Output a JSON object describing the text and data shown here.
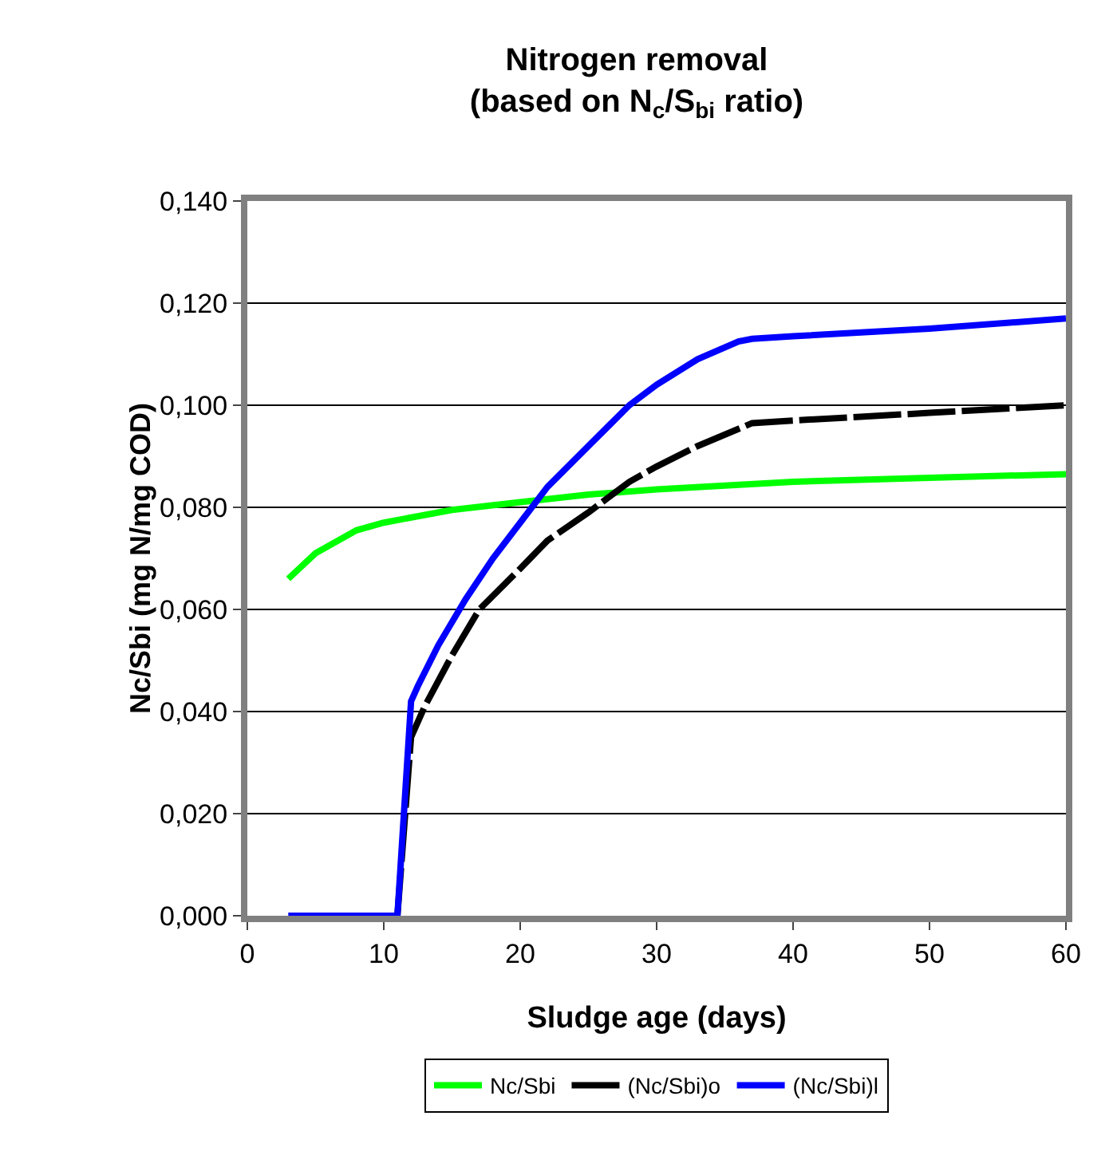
{
  "chart_data": {
    "type": "line",
    "title": "Nitrogen removal\n(based on N$_{c}$/S$_{bi}$ ratio)",
    "xlabel": "Sludge age (days)",
    "ylabel": "Nc/Sbi (mg N/mg COD)",
    "xlim": [
      0,
      60
    ],
    "xticks": [
      0,
      10,
      20,
      30,
      40,
      50,
      60
    ],
    "ylim": [
      0,
      0.14
    ],
    "yticks": [
      {
        "value": 0,
        "label": "0,000"
      },
      {
        "value": 0.02,
        "label": "0,020"
      },
      {
        "value": 0.04,
        "label": "0,040"
      },
      {
        "value": 0.06,
        "label": "0,060"
      },
      {
        "value": 0.08,
        "label": "0,080"
      },
      {
        "value": 0.1,
        "label": "0,100"
      },
      {
        "value": 0.12,
        "label": "0,120"
      },
      {
        "value": 0.14,
        "label": "0,140"
      }
    ],
    "grid": "y",
    "legend": "bottom",
    "marker": "none",
    "series": [
      {
        "name": "Nc/Sbi",
        "color": "#00ff00",
        "line_style": "solid",
        "x": [
          3,
          5,
          8,
          10,
          15,
          20,
          25,
          30,
          40,
          50,
          60
        ],
        "values": [
          0.066,
          0.071,
          0.0755,
          0.077,
          0.0795,
          0.081,
          0.0825,
          0.0835,
          0.085,
          0.0858,
          0.0865
        ]
      },
      {
        "name": "(Nc/Sbi)o",
        "color": "#000000",
        "line_style": "dashed",
        "x": [
          11,
          12,
          13,
          15,
          17,
          20,
          22,
          25,
          28,
          30,
          33,
          37,
          40,
          50,
          60
        ],
        "values": [
          0,
          0.035,
          0.041,
          0.051,
          0.06,
          0.068,
          0.0735,
          0.079,
          0.085,
          0.088,
          0.092,
          0.0965,
          0.097,
          0.0985,
          0.1
        ]
      },
      {
        "name": "(Nc/Sbi)l",
        "color": "#0000ff",
        "line_style": "solid",
        "x": [
          3,
          11,
          12,
          12.5,
          14,
          16,
          18,
          20,
          22,
          25,
          28,
          30,
          33,
          36,
          37,
          40,
          50,
          60
        ],
        "values": [
          0,
          0,
          0.042,
          0.045,
          0.053,
          0.062,
          0.07,
          0.077,
          0.084,
          0.092,
          0.1,
          0.104,
          0.109,
          0.1125,
          0.113,
          0.1135,
          0.115,
          0.117
        ]
      }
    ]
  }
}
